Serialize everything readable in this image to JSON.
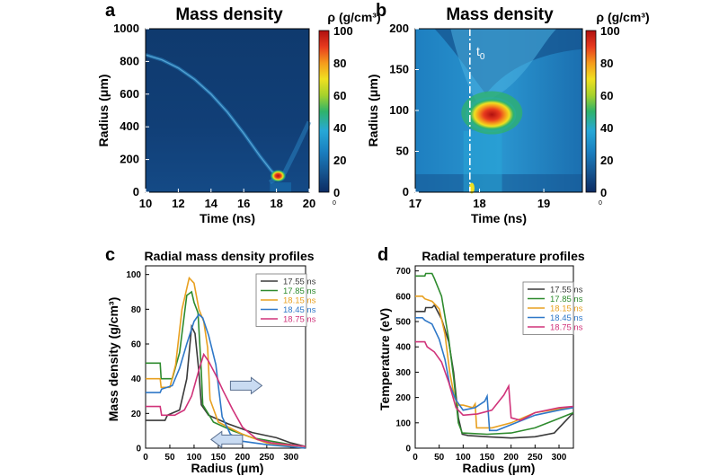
{
  "colorscale": [
    "#0c2b63",
    "#16548f",
    "#1a7fc0",
    "#27a8d7",
    "#2fb36a",
    "#a6d22b",
    "#f0e020",
    "#f59a1c",
    "#e83a1e",
    "#b01010"
  ],
  "chart_data": [
    {
      "id": "a",
      "panel_letter": "a",
      "type": "heatmap",
      "title": "Mass density",
      "xlabel": "Time (ns)",
      "ylabel": "Radius (μm)",
      "xlim": [
        10,
        20
      ],
      "ylim": [
        0,
        1000
      ],
      "xticks": [
        "10",
        "12",
        "14",
        "16",
        "18",
        "20"
      ],
      "yticks": [
        "0",
        "200",
        "400",
        "600",
        "800",
        "1000"
      ],
      "colorbar": {
        "label": "ρ (g/cm³)",
        "ticks": [
          "100",
          "80",
          "60",
          "40",
          "20",
          "0"
        ],
        "range": [
          0,
          100
        ],
        "minor_label": "0"
      },
      "features": {
        "trajectory": [
          [
            10.0,
            840
          ],
          [
            11.0,
            810
          ],
          [
            12.0,
            760
          ],
          [
            13.0,
            690
          ],
          [
            14.0,
            600
          ],
          [
            15.0,
            490
          ],
          [
            16.0,
            360
          ],
          [
            17.0,
            220
          ],
          [
            17.7,
            130
          ],
          [
            18.1,
            95
          ]
        ],
        "peak": {
          "t": 18.1,
          "r": 100,
          "rho": 100
        }
      }
    },
    {
      "id": "b",
      "panel_letter": "b",
      "type": "heatmap",
      "title": "Mass density",
      "xlabel": "Time (ns)",
      "ylabel": "Radius (μm)",
      "xlim": [
        17,
        19.6
      ],
      "ylim": [
        0,
        200
      ],
      "xticks": [
        "17",
        "18",
        "19"
      ],
      "yticks": [
        "0",
        "50",
        "100",
        "150",
        "200"
      ],
      "annotation": "t",
      "annotation_sub": "0",
      "t0": 17.85,
      "colorbar": {
        "label": "ρ (g/cm³)",
        "ticks": [
          "100",
          "80",
          "60",
          "40",
          "20",
          "0"
        ],
        "range": [
          0,
          100
        ],
        "minor_label": "0"
      },
      "features": {
        "peak": {
          "t": 18.15,
          "r": 95,
          "rho": 100
        }
      }
    },
    {
      "id": "c",
      "panel_letter": "c",
      "type": "line",
      "title": "Radial mass density profiles",
      "xlabel": "Radius (μm)",
      "ylabel": "Mass density (g/cm³)",
      "xlim": [
        0,
        330
      ],
      "ylim": [
        0,
        105
      ],
      "xticks": [
        0,
        50,
        100,
        150,
        200,
        250,
        300
      ],
      "yticks": [
        0,
        20,
        40,
        60,
        80,
        100
      ],
      "series": [
        {
          "name": "17.55 ns",
          "color": "#3a3a3a",
          "points": [
            [
              0,
              16
            ],
            [
              40,
              16
            ],
            [
              45,
              19
            ],
            [
              70,
              22
            ],
            [
              85,
              40
            ],
            [
              95,
              70
            ],
            [
              102,
              66
            ],
            [
              110,
              44
            ],
            [
              115,
              25
            ],
            [
              130,
              19
            ],
            [
              170,
              14
            ],
            [
              220,
              9
            ],
            [
              270,
              6
            ],
            [
              300,
              3
            ],
            [
              330,
              1
            ]
          ]
        },
        {
          "name": "17.85 ns",
          "color": "#2e8b2e",
          "points": [
            [
              0,
              49
            ],
            [
              30,
              49
            ],
            [
              32,
              40
            ],
            [
              55,
              40
            ],
            [
              70,
              55
            ],
            [
              85,
              88
            ],
            [
              95,
              90
            ],
            [
              100,
              84
            ],
            [
              108,
              78
            ],
            [
              115,
              44
            ],
            [
              118,
              25
            ],
            [
              140,
              15
            ],
            [
              180,
              10
            ],
            [
              220,
              6
            ],
            [
              260,
              4
            ],
            [
              300,
              2
            ],
            [
              330,
              1
            ]
          ]
        },
        {
          "name": "18.15 ns",
          "color": "#e8a020",
          "points": [
            [
              0,
              40
            ],
            [
              30,
              40
            ],
            [
              32,
              35
            ],
            [
              50,
              35
            ],
            [
              62,
              48
            ],
            [
              75,
              80
            ],
            [
              90,
              98
            ],
            [
              100,
              95
            ],
            [
              110,
              80
            ],
            [
              120,
              73
            ],
            [
              128,
              58
            ],
            [
              133,
              28
            ],
            [
              150,
              15
            ],
            [
              200,
              8
            ],
            [
              250,
              3
            ],
            [
              300,
              1
            ],
            [
              330,
              0
            ]
          ]
        },
        {
          "name": "18.45 ns",
          "color": "#2f78c8",
          "points": [
            [
              0,
              32
            ],
            [
              30,
              32
            ],
            [
              33,
              34
            ],
            [
              55,
              36
            ],
            [
              70,
              46
            ],
            [
              85,
              60
            ],
            [
              100,
              73
            ],
            [
              110,
              77
            ],
            [
              118,
              75
            ],
            [
              130,
              65
            ],
            [
              145,
              48
            ],
            [
              150,
              36
            ],
            [
              158,
              18
            ],
            [
              175,
              8
            ],
            [
              200,
              4
            ],
            [
              250,
              2
            ],
            [
              330,
              0
            ]
          ]
        },
        {
          "name": "18.75 ns",
          "color": "#d0337a",
          "points": [
            [
              0,
              24
            ],
            [
              30,
              24
            ],
            [
              33,
              19
            ],
            [
              60,
              19
            ],
            [
              80,
              22
            ],
            [
              95,
              30
            ],
            [
              110,
              45
            ],
            [
              120,
              54
            ],
            [
              130,
              50
            ],
            [
              145,
              42
            ],
            [
              160,
              33
            ],
            [
              180,
              22
            ],
            [
              200,
              12
            ],
            [
              230,
              5
            ],
            [
              260,
              3
            ],
            [
              330,
              1
            ]
          ]
        }
      ],
      "arrows": [
        {
          "x1": 175,
          "x2": 240,
          "y": 36,
          "dir": "right"
        },
        {
          "x1": 200,
          "x2": 135,
          "y": 5,
          "dir": "left"
        }
      ]
    },
    {
      "id": "d",
      "panel_letter": "d",
      "type": "line",
      "title": "Radial temperature profiles",
      "xlabel": "Radius (μm)",
      "ylabel": "Temperature (eV)",
      "xlim": [
        0,
        330
      ],
      "ylim": [
        0,
        720
      ],
      "xticks": [
        0,
        50,
        100,
        150,
        200,
        250,
        300
      ],
      "yticks": [
        0,
        100,
        200,
        300,
        400,
        500,
        600,
        700
      ],
      "series": [
        {
          "name": "17.55 ns",
          "color": "#3a3a3a",
          "points": [
            [
              0,
              540
            ],
            [
              20,
              540
            ],
            [
              22,
              555
            ],
            [
              35,
              555
            ],
            [
              40,
              565
            ],
            [
              55,
              510
            ],
            [
              70,
              420
            ],
            [
              80,
              300
            ],
            [
              90,
              120
            ],
            [
              98,
              55
            ],
            [
              110,
              50
            ],
            [
              150,
              45
            ],
            [
              200,
              40
            ],
            [
              250,
              45
            ],
            [
              290,
              60
            ],
            [
              310,
              100
            ],
            [
              330,
              140
            ]
          ]
        },
        {
          "name": "17.85 ns",
          "color": "#2e8b2e",
          "points": [
            [
              0,
              680
            ],
            [
              20,
              680
            ],
            [
              22,
              690
            ],
            [
              35,
              690
            ],
            [
              40,
              670
            ],
            [
              55,
              600
            ],
            [
              70,
              430
            ],
            [
              80,
              280
            ],
            [
              90,
              100
            ],
            [
              98,
              60
            ],
            [
              150,
              55
            ],
            [
              200,
              60
            ],
            [
              250,
              80
            ],
            [
              290,
              110
            ],
            [
              330,
              140
            ]
          ]
        },
        {
          "name": "18.15 ns",
          "color": "#e8a020",
          "points": [
            [
              0,
              600
            ],
            [
              15,
              600
            ],
            [
              20,
              590
            ],
            [
              35,
              580
            ],
            [
              50,
              550
            ],
            [
              62,
              450
            ],
            [
              72,
              300
            ],
            [
              82,
              200
            ],
            [
              90,
              170
            ],
            [
              100,
              170
            ],
            [
              120,
              160
            ],
            [
              125,
              175
            ],
            [
              128,
              80
            ],
            [
              160,
              80
            ],
            [
              200,
              100
            ],
            [
              250,
              140
            ],
            [
              300,
              155
            ],
            [
              330,
              160
            ]
          ]
        },
        {
          "name": "18.45 ns",
          "color": "#2f78c8",
          "points": [
            [
              0,
              515
            ],
            [
              15,
              515
            ],
            [
              20,
              505
            ],
            [
              35,
              490
            ],
            [
              50,
              430
            ],
            [
              62,
              350
            ],
            [
              72,
              250
            ],
            [
              85,
              190
            ],
            [
              100,
              150
            ],
            [
              125,
              160
            ],
            [
              145,
              185
            ],
            [
              150,
              205
            ],
            [
              155,
              70
            ],
            [
              170,
              70
            ],
            [
              210,
              100
            ],
            [
              250,
              130
            ],
            [
              300,
              150
            ],
            [
              330,
              160
            ]
          ]
        },
        {
          "name": "18.75 ns",
          "color": "#d0337a",
          "points": [
            [
              0,
              420
            ],
            [
              20,
              420
            ],
            [
              25,
              400
            ],
            [
              40,
              380
            ],
            [
              55,
              340
            ],
            [
              70,
              260
            ],
            [
              85,
              160
            ],
            [
              100,
              130
            ],
            [
              130,
              135
            ],
            [
              160,
              150
            ],
            [
              185,
              210
            ],
            [
              195,
              245
            ],
            [
              200,
              120
            ],
            [
              220,
              110
            ],
            [
              250,
              140
            ],
            [
              300,
              160
            ],
            [
              330,
              165
            ]
          ]
        }
      ]
    }
  ]
}
